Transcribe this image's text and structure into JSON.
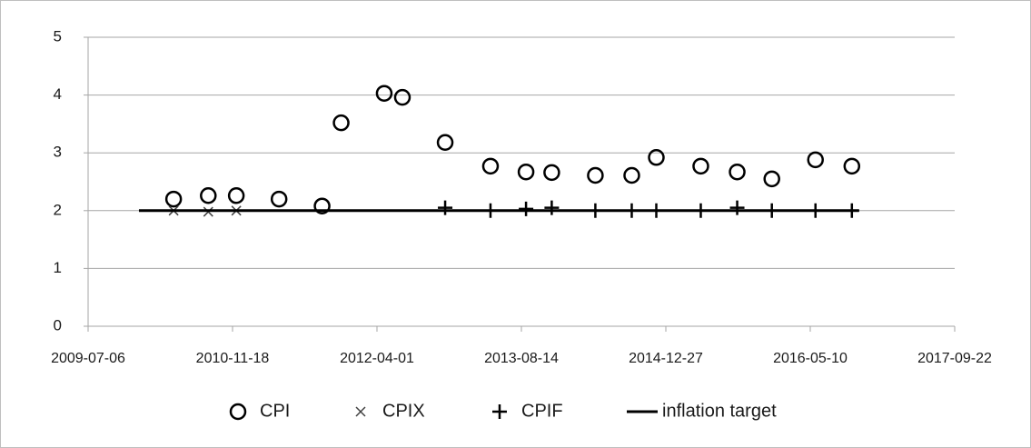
{
  "chart_data": {
    "type": "scatter",
    "xlim": [
      "2009-07-06",
      "2017-09-22"
    ],
    "xticks": [
      "2009-07-06",
      "2010-11-18",
      "2012-04-01",
      "2013-08-14",
      "2014-12-27",
      "2016-05-10",
      "2017-09-22"
    ],
    "ylim": [
      0,
      5
    ],
    "yticks": [
      0,
      1,
      2,
      3,
      4,
      5
    ],
    "grid": true,
    "legend": "bottom",
    "series": [
      {
        "name": "CPI",
        "color": "#000000",
        "marker": "circle",
        "x": [
          "2010-04-28",
          "2010-08-26",
          "2010-12-01",
          "2011-04-28",
          "2011-09-24",
          "2011-11-29",
          "2012-04-26",
          "2012-06-28",
          "2012-11-23",
          "2013-04-29",
          "2013-08-30",
          "2013-11-27",
          "2014-04-27",
          "2014-08-31",
          "2014-11-24",
          "2015-04-27",
          "2015-08-31",
          "2015-12-29",
          "2016-05-28",
          "2016-10-01"
        ],
        "values": [
          2.2,
          2.26,
          2.26,
          2.2,
          2.08,
          3.52,
          4.03,
          3.96,
          3.18,
          2.77,
          2.67,
          2.66,
          2.61,
          2.61,
          2.92,
          2.77,
          2.67,
          2.55,
          2.88,
          2.77
        ]
      },
      {
        "name": "CPIX",
        "color": "#404040",
        "marker": "x",
        "x": [
          "2010-04-28",
          "2010-08-26",
          "2010-12-01"
        ],
        "values": [
          2.0,
          1.98,
          2.0
        ]
      },
      {
        "name": "CPIF",
        "color": "#000000",
        "marker": "plus",
        "x": [
          "2012-11-23",
          "2013-04-29",
          "2013-08-30",
          "2013-11-27",
          "2014-04-27",
          "2014-08-31",
          "2014-11-24",
          "2015-04-27",
          "2015-08-31",
          "2015-12-29",
          "2016-05-28",
          "2016-10-01"
        ],
        "values": [
          2.05,
          2.0,
          2.03,
          2.05,
          2.0,
          2.0,
          2.0,
          2.0,
          2.05,
          2.0,
          2.0,
          2.0
        ]
      },
      {
        "name": "inflation target",
        "color": "#000000",
        "marker": "line",
        "x": [
          "2009-12-29",
          "2016-10-26"
        ],
        "values": [
          2,
          2
        ]
      }
    ]
  }
}
